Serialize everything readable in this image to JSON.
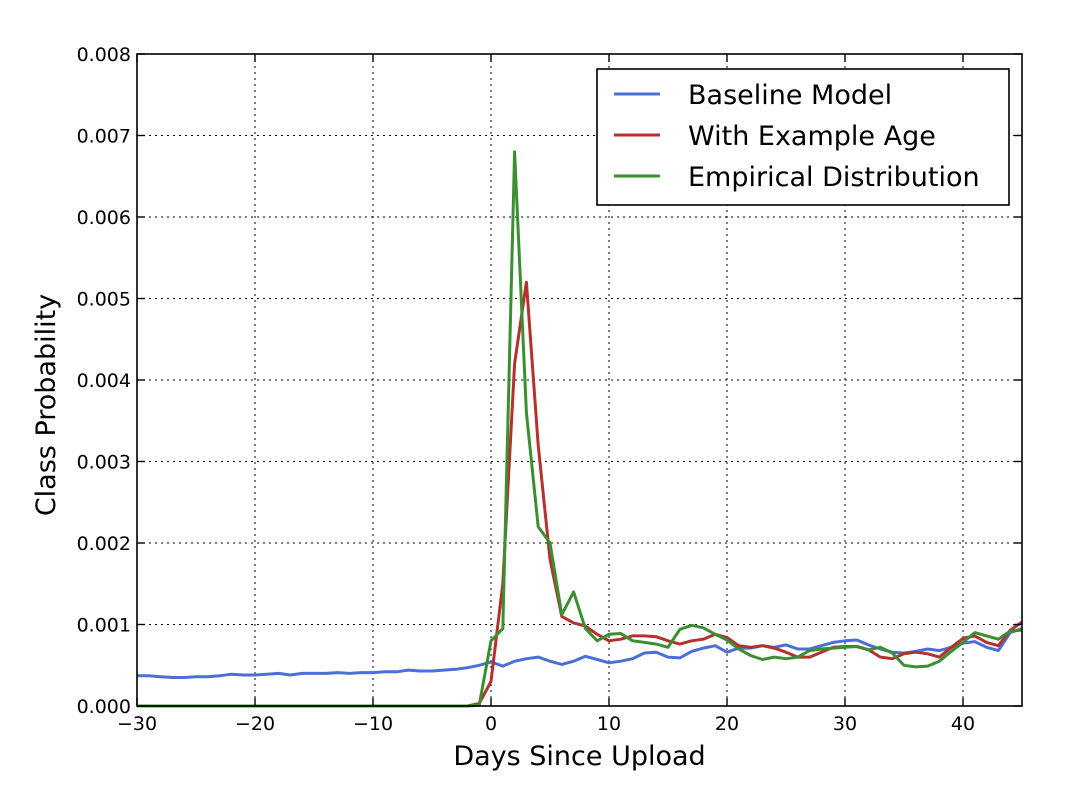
{
  "chart_data": {
    "type": "line",
    "title": "",
    "xlabel": "Days Since Upload",
    "ylabel": "Class Probability",
    "xlim": [
      -30,
      45
    ],
    "ylim": [
      0,
      0.008
    ],
    "xticks": [
      -30,
      -20,
      -10,
      0,
      10,
      20,
      30,
      40
    ],
    "xtick_labels": [
      "−30",
      "−20",
      "−10",
      "0",
      "10",
      "20",
      "30",
      "40"
    ],
    "yticks": [
      0,
      0.001,
      0.002,
      0.003,
      0.004,
      0.005,
      0.006,
      0.007,
      0.008
    ],
    "ytick_labels": [
      "0.000",
      "0.001",
      "0.002",
      "0.003",
      "0.004",
      "0.005",
      "0.006",
      "0.007",
      "0.008"
    ],
    "grid": true,
    "legend_position": "top-right",
    "series": [
      {
        "name": "Baseline Model",
        "color": "#4b6fd9",
        "x": [
          -30,
          -29,
          -28,
          -27,
          -26,
          -25,
          -24,
          -23,
          -22,
          -21,
          -20,
          -19,
          -18,
          -17,
          -16,
          -15,
          -14,
          -13,
          -12,
          -11,
          -10,
          -9,
          -8,
          -7,
          -6,
          -5,
          -4,
          -3,
          -2,
          -1,
          0,
          1,
          2,
          3,
          4,
          5,
          6,
          7,
          8,
          9,
          10,
          11,
          12,
          13,
          14,
          15,
          16,
          17,
          18,
          19,
          20,
          21,
          22,
          23,
          24,
          25,
          26,
          27,
          28,
          29,
          30,
          31,
          32,
          33,
          34,
          35,
          36,
          37,
          38,
          39,
          40,
          41,
          42,
          43,
          44,
          45
        ],
        "y": [
          0.00037,
          0.00037,
          0.00036,
          0.00035,
          0.00035,
          0.00036,
          0.00036,
          0.00037,
          0.00039,
          0.00038,
          0.00038,
          0.00039,
          0.0004,
          0.00038,
          0.0004,
          0.0004,
          0.0004,
          0.00041,
          0.0004,
          0.00041,
          0.00041,
          0.00042,
          0.00042,
          0.00044,
          0.00043,
          0.00043,
          0.00044,
          0.00045,
          0.00047,
          0.0005,
          0.00054,
          0.00049,
          0.00055,
          0.00058,
          0.0006,
          0.00055,
          0.00051,
          0.00055,
          0.00061,
          0.00057,
          0.00053,
          0.00055,
          0.00058,
          0.00065,
          0.00066,
          0.0006,
          0.00059,
          0.00067,
          0.00071,
          0.00074,
          0.00066,
          0.00071,
          0.00071,
          0.00074,
          0.00072,
          0.00075,
          0.0007,
          0.0007,
          0.00074,
          0.00078,
          0.0008,
          0.00081,
          0.00075,
          0.0007,
          0.00066,
          0.00065,
          0.00067,
          0.0007,
          0.00068,
          0.00072,
          0.00077,
          0.00079,
          0.00072,
          0.00068,
          0.0009,
          0.00095
        ]
      },
      {
        "name": "With Example Age",
        "color": "#b5312b",
        "x": [
          -30,
          -2,
          -1,
          0,
          1,
          2,
          3,
          4,
          5,
          6,
          7,
          8,
          9,
          10,
          11,
          12,
          13,
          14,
          15,
          16,
          17,
          18,
          19,
          20,
          21,
          22,
          23,
          24,
          25,
          26,
          27,
          28,
          29,
          30,
          31,
          32,
          33,
          34,
          35,
          36,
          37,
          38,
          39,
          40,
          41,
          42,
          43,
          44,
          45
        ],
        "y": [
          0,
          0,
          3e-05,
          0.0003,
          0.0015,
          0.0042,
          0.0052,
          0.0032,
          0.0018,
          0.0011,
          0.00102,
          0.00098,
          0.00088,
          0.0008,
          0.00082,
          0.00086,
          0.00086,
          0.00085,
          0.0008,
          0.00076,
          0.0008,
          0.00082,
          0.00088,
          0.00084,
          0.00074,
          0.00072,
          0.00074,
          0.00071,
          0.00066,
          0.0006,
          0.0006,
          0.00066,
          0.00072,
          0.00073,
          0.00073,
          0.00069,
          0.0006,
          0.00058,
          0.00064,
          0.00066,
          0.00064,
          0.0006,
          0.00072,
          0.00083,
          0.00086,
          0.00078,
          0.00074,
          0.00093,
          0.00103
        ]
      },
      {
        "name": "Empirical Distribution",
        "color": "#3b8f32",
        "x": [
          -30,
          -2,
          -1,
          0,
          1,
          2,
          3,
          4,
          5,
          6,
          7,
          8,
          9,
          10,
          11,
          12,
          13,
          14,
          15,
          16,
          17,
          18,
          19,
          20,
          21,
          22,
          23,
          24,
          25,
          26,
          27,
          28,
          29,
          30,
          31,
          32,
          33,
          34,
          35,
          36,
          37,
          38,
          39,
          40,
          41,
          42,
          43,
          44,
          45
        ],
        "y": [
          0,
          0,
          1e-05,
          0.0008,
          0.00095,
          0.0068,
          0.0036,
          0.0022,
          0.002,
          0.00112,
          0.0014,
          0.00095,
          0.0008,
          0.00088,
          0.00089,
          0.0008,
          0.00078,
          0.00076,
          0.00072,
          0.00094,
          0.00099,
          0.00096,
          0.00088,
          0.00081,
          0.0007,
          0.00062,
          0.00057,
          0.0006,
          0.00058,
          0.0006,
          0.00068,
          0.0007,
          0.00071,
          0.00072,
          0.00073,
          0.00069,
          0.00072,
          0.00065,
          0.0005,
          0.00048,
          0.00049,
          0.00055,
          0.00067,
          0.00078,
          0.0009,
          0.00086,
          0.00082,
          0.00092,
          0.00093
        ]
      }
    ]
  }
}
